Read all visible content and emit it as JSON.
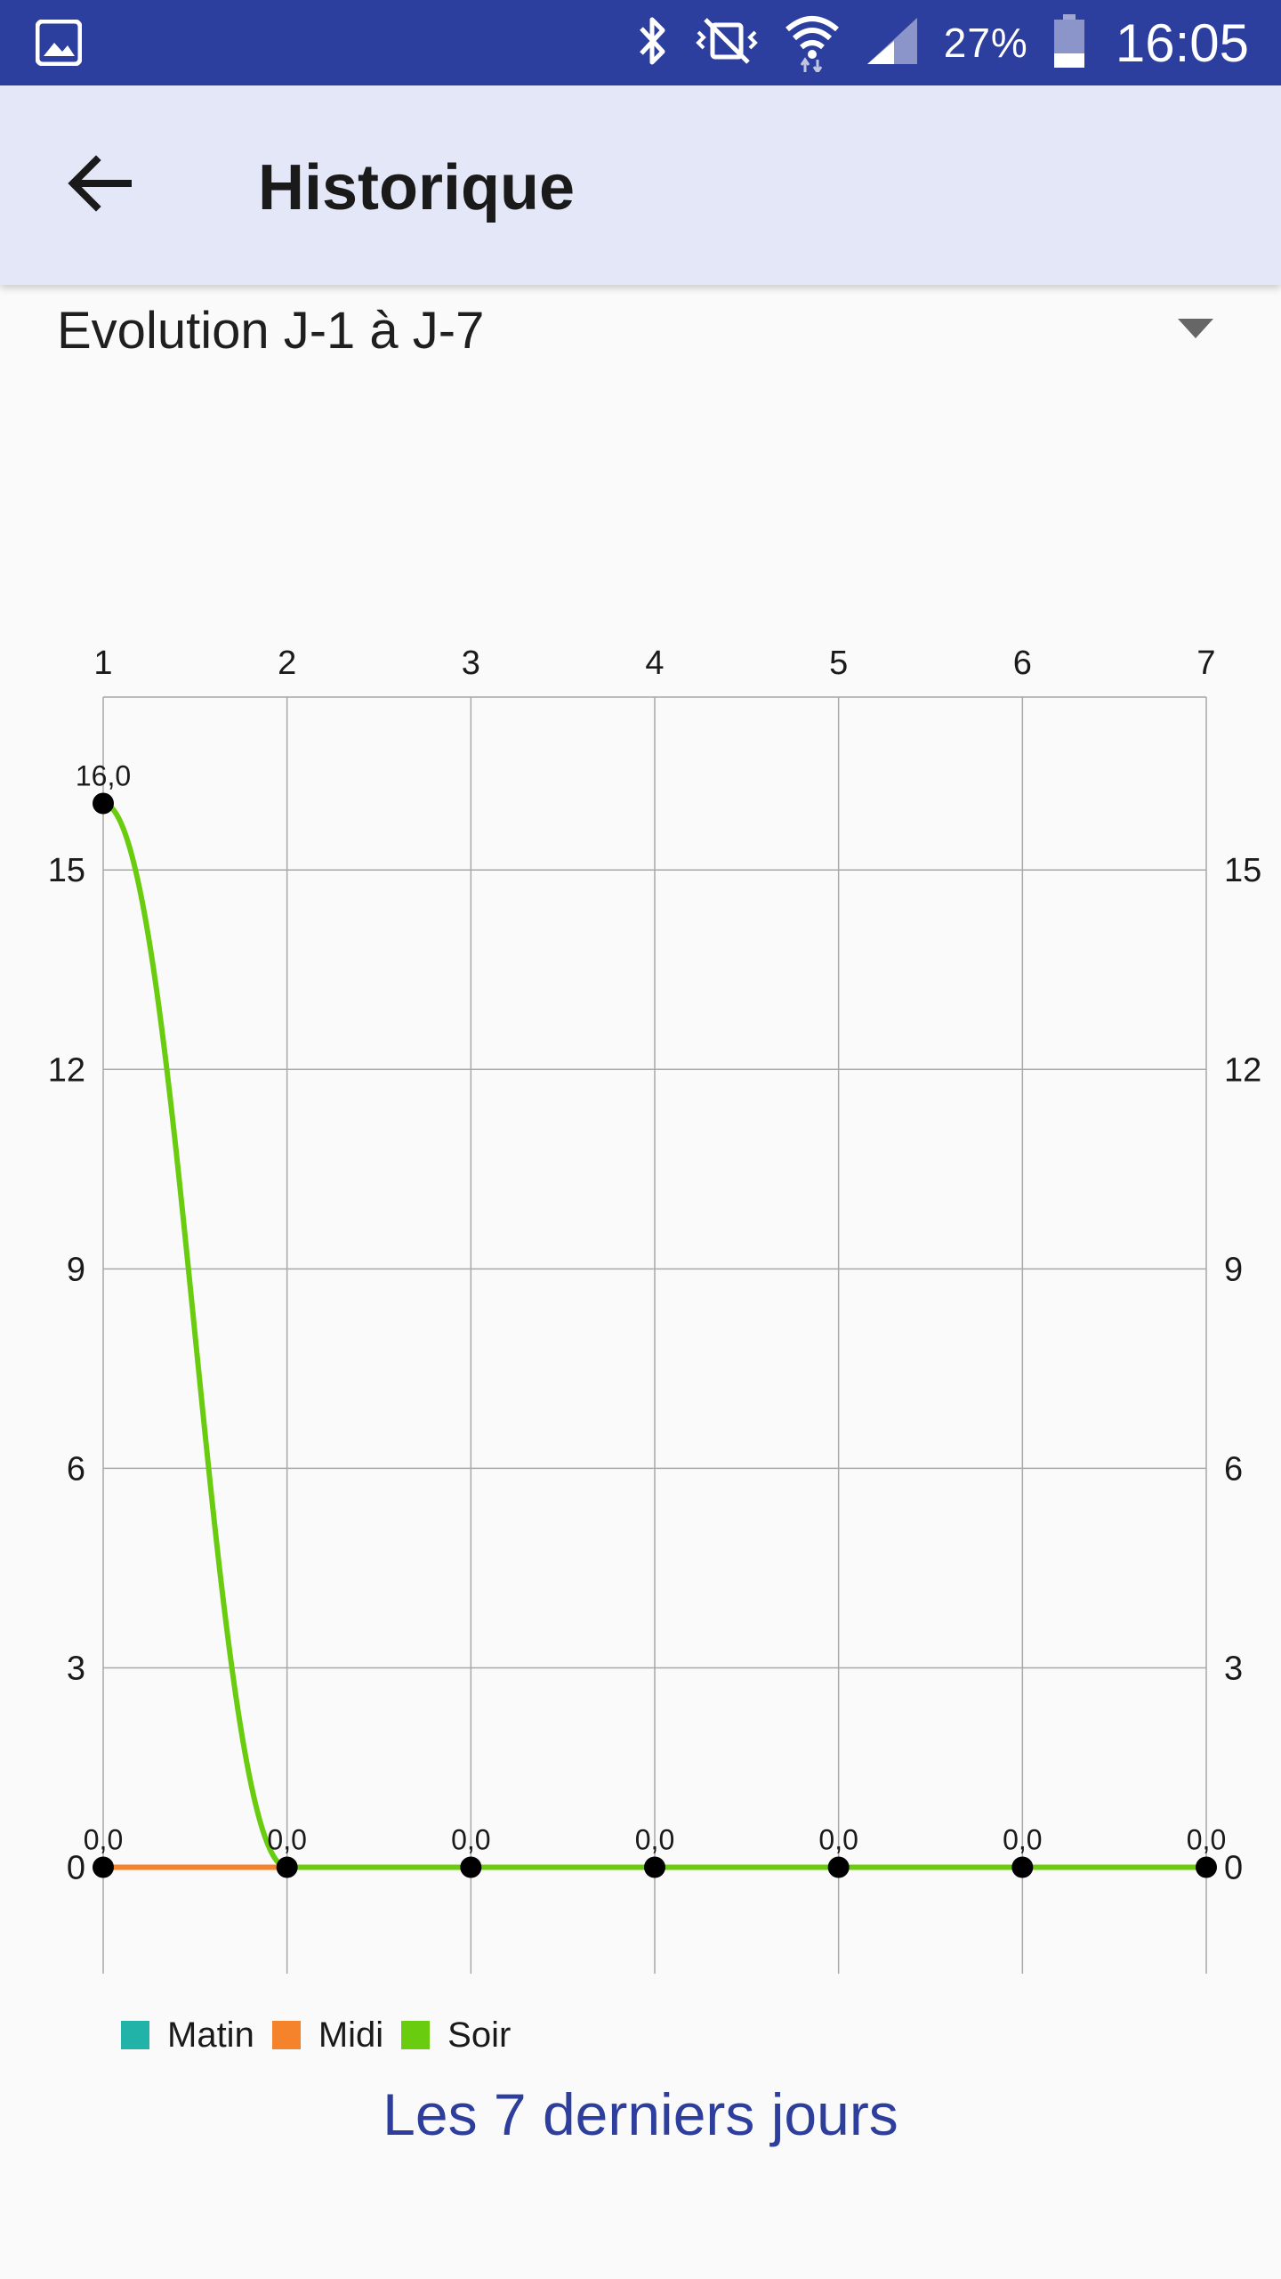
{
  "status_bar": {
    "battery_percent": "27%",
    "time": "16:05",
    "icons": [
      "gallery-icon",
      "bluetooth-icon",
      "vibrate-off-icon",
      "wifi-icon",
      "signal-icon",
      "battery-icon"
    ]
  },
  "app_bar": {
    "title": "Historique",
    "back_icon": "arrow-left-icon",
    "background": "#e4e7f8"
  },
  "dropdown": {
    "selected": "Evolution J-1 à J-7"
  },
  "colors": {
    "status_bar": "#2c3f9e",
    "caption": "#2d3e9c",
    "matin": "#22b3a8",
    "midi": "#f5832b",
    "soir": "#6acc0e"
  },
  "chart_data": {
    "type": "line",
    "x": [
      1,
      2,
      3,
      4,
      5,
      6,
      7
    ],
    "x_ticks": [
      "1",
      "2",
      "3",
      "4",
      "5",
      "6",
      "7"
    ],
    "x_axis_position": "top",
    "y_ticks": [
      "0",
      "3",
      "6",
      "9",
      "12",
      "15"
    ],
    "y_axis": "left and right",
    "ylim": [
      -1.6,
      17.6
    ],
    "grid": true,
    "legend_placement": "bottom-left",
    "series": [
      {
        "name": "Matin",
        "color": "#22b3a8",
        "values": [
          0,
          0,
          0,
          0,
          0,
          0,
          0
        ]
      },
      {
        "name": "Midi",
        "color": "#f5832b",
        "values": [
          0,
          0,
          0,
          0,
          0,
          0,
          0
        ]
      },
      {
        "name": "Soir",
        "color": "#6acc0e",
        "values": [
          16,
          0,
          0,
          0,
          0,
          0,
          0
        ]
      }
    ],
    "data_labels": [
      "16,0",
      "0,0",
      "0,0",
      "0,0",
      "0,0",
      "0,0",
      "0,0",
      "0,0"
    ],
    "caption": "Les 7 derniers jours"
  }
}
